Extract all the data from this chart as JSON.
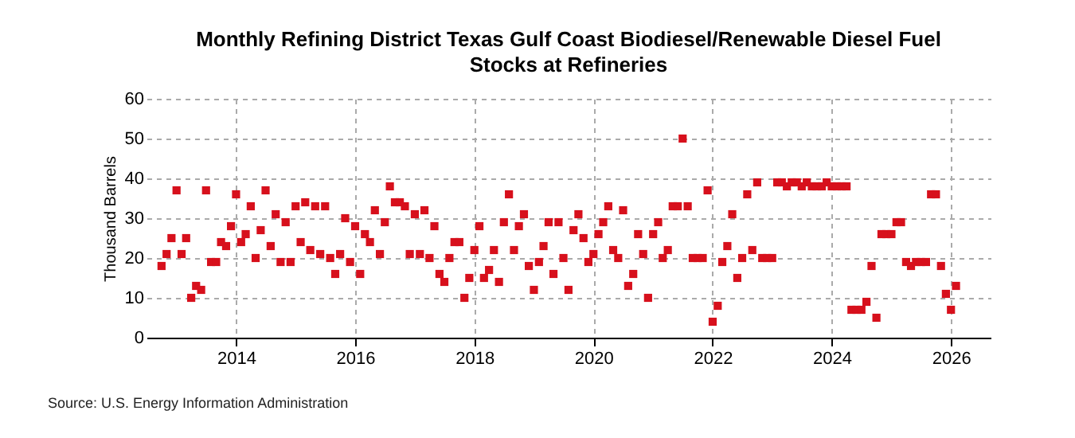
{
  "chart_data": {
    "type": "scatter",
    "title": "Monthly Refining District Texas Gulf Coast Biodiesel/Renewable Diesel Fuel Stocks at Refineries",
    "ylabel": "Thousand Barrels",
    "annotations": [
      "Source: U.S. Energy Information Administration"
    ],
    "x": [
      "2012-10",
      "2012-11",
      "2012-12",
      "2013-01",
      "2013-02",
      "2013-03",
      "2013-04",
      "2013-05",
      "2013-06",
      "2013-07",
      "2013-08",
      "2013-09",
      "2013-10",
      "2013-11",
      "2013-12",
      "2014-01",
      "2014-02",
      "2014-03",
      "2014-04",
      "2014-05",
      "2014-06",
      "2014-07",
      "2014-08",
      "2014-09",
      "2014-10",
      "2014-11",
      "2014-12",
      "2015-01",
      "2015-02",
      "2015-03",
      "2015-04",
      "2015-05",
      "2015-06",
      "2015-07",
      "2015-08",
      "2015-09",
      "2015-10",
      "2015-11",
      "2015-12",
      "2016-01",
      "2016-02",
      "2016-03",
      "2016-04",
      "2016-05",
      "2016-06",
      "2016-07",
      "2016-08",
      "2016-09",
      "2016-10",
      "2016-11",
      "2016-12",
      "2017-01",
      "2017-02",
      "2017-03",
      "2017-04",
      "2017-05",
      "2017-06",
      "2017-07",
      "2017-08",
      "2017-09",
      "2017-10",
      "2017-11",
      "2017-12",
      "2018-01",
      "2018-02",
      "2018-03",
      "2018-04",
      "2018-05",
      "2018-06",
      "2018-07",
      "2018-08",
      "2018-09",
      "2018-10",
      "2018-11",
      "2018-12",
      "2019-01",
      "2019-02",
      "2019-03",
      "2019-04",
      "2019-05",
      "2019-06",
      "2019-07",
      "2019-08",
      "2019-09",
      "2019-10",
      "2019-11",
      "2019-12",
      "2020-01",
      "2020-02",
      "2020-03",
      "2020-04",
      "2020-05",
      "2020-06",
      "2020-07",
      "2020-08",
      "2020-09",
      "2020-10",
      "2020-11",
      "2020-12",
      "2021-01",
      "2021-02",
      "2021-03",
      "2021-04",
      "2021-05",
      "2021-06",
      "2021-07",
      "2021-08",
      "2021-09",
      "2021-10",
      "2021-11",
      "2021-12",
      "2022-01",
      "2022-02",
      "2022-03",
      "2022-04",
      "2022-05",
      "2022-06",
      "2022-07",
      "2022-08",
      "2022-09",
      "2022-10",
      "2022-11",
      "2022-12",
      "2023-01",
      "2023-02",
      "2023-03",
      "2023-04",
      "2023-05",
      "2023-06",
      "2023-07",
      "2023-08",
      "2023-09",
      "2023-10",
      "2023-11",
      "2023-12",
      "2024-01",
      "2024-02",
      "2024-03",
      "2024-04",
      "2024-05",
      "2024-06",
      "2024-07",
      "2024-08",
      "2024-09",
      "2024-10",
      "2024-11",
      "2024-12",
      "2025-01",
      "2025-02",
      "2025-03",
      "2025-04",
      "2025-05",
      "2025-06",
      "2025-07",
      "2025-08",
      "2025-09",
      "2025-10",
      "2025-11",
      "2025-12",
      "2026-01",
      "2026-02"
    ],
    "series": [
      {
        "color": "#d7101c",
        "values": [
          18,
          21,
          25,
          37,
          21,
          25,
          10,
          13,
          12,
          37,
          19,
          19,
          24,
          23,
          28,
          36,
          24,
          26,
          33,
          20,
          27,
          37,
          23,
          31,
          19,
          29,
          19,
          33,
          24,
          34,
          22,
          33,
          21,
          33,
          20,
          16,
          21,
          30,
          19,
          28,
          16,
          26,
          24,
          32,
          21,
          29,
          38,
          34,
          34,
          33,
          21,
          31,
          21,
          32,
          20,
          28,
          16,
          14,
          20,
          24,
          24,
          10,
          15,
          22,
          28,
          15,
          17,
          22,
          14,
          29,
          36,
          22,
          28,
          31,
          18,
          12,
          19,
          23,
          29,
          16,
          29,
          20,
          12,
          27,
          31,
          25,
          19,
          21,
          26,
          29,
          33,
          22,
          20,
          32,
          13,
          16,
          26,
          21,
          10,
          26,
          29,
          20,
          22,
          33,
          33,
          50,
          33,
          20,
          20,
          20,
          37,
          4,
          8,
          19,
          23,
          31,
          15,
          20,
          36,
          22,
          39,
          20,
          20,
          20,
          39,
          39,
          38,
          39,
          39,
          38,
          39,
          38,
          38,
          38,
          39,
          38,
          38,
          38,
          38,
          7,
          7,
          7,
          9,
          18,
          5,
          26,
          26,
          26,
          29,
          29,
          19,
          18,
          19,
          19,
          19,
          36,
          36,
          18,
          11,
          7,
          13
        ]
      }
    ],
    "xlim": [
      "2012-07",
      "2026-09"
    ],
    "xticks": [
      "2014",
      "2016",
      "2018",
      "2020",
      "2022",
      "2024",
      "2026"
    ],
    "ylim": [
      0,
      60
    ],
    "yticks": [
      0,
      10,
      20,
      30,
      40,
      50,
      60
    ],
    "grid": true,
    "marker": "square"
  }
}
